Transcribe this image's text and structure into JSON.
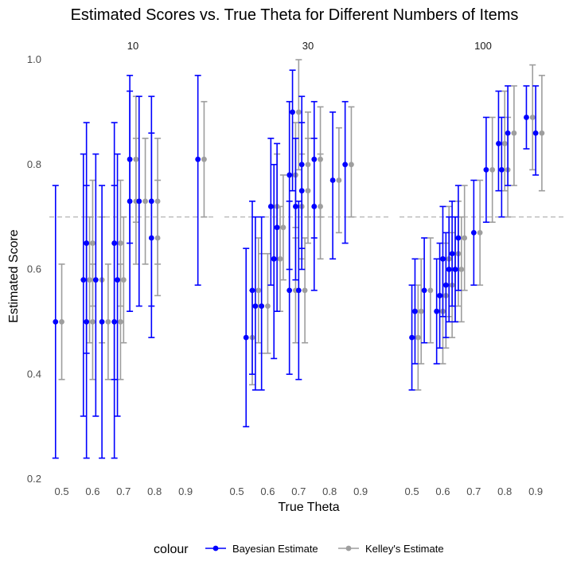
{
  "chart_data": {
    "type": "scatter",
    "title": "Estimated Scores vs. True Theta for Different Numbers of Items",
    "xlabel": "True Theta",
    "ylabel": "Estimated Score",
    "facets": [
      "10",
      "30",
      "100"
    ],
    "x_ticks": [
      "0.5",
      "0.6",
      "0.7",
      "0.8",
      "0.9"
    ],
    "y_ticks": [
      "0.2",
      "0.4",
      "0.6",
      "0.8",
      "1.0"
    ],
    "xlim": [
      0.46,
      1.0
    ],
    "ylim": [
      0.2,
      1.0
    ],
    "reference_line": {
      "y": 0.7,
      "style": "dashed"
    },
    "grid": false,
    "legend": {
      "position": "bottom",
      "title": "colour"
    },
    "series": [
      {
        "name": "Bayesian Estimate",
        "color": "#0000ff",
        "offset": 0
      },
      {
        "name": "Kelley's Estimate",
        "color": "#9e9e9e",
        "offset": 0.02
      }
    ],
    "panels": [
      {
        "facet": "10",
        "points": [
          {
            "x": 0.48,
            "b": [
              0.5,
              0.24,
              0.76
            ],
            "k": [
              0.5,
              0.39,
              0.61
            ]
          },
          {
            "x": 0.57,
            "b": [
              0.58,
              0.32,
              0.82
            ],
            "k": [
              0.58,
              0.46,
              0.7
            ]
          },
          {
            "x": 0.58,
            "b": [
              0.5,
              0.24,
              0.76
            ],
            "k": [
              0.5,
              0.39,
              0.61
            ]
          },
          {
            "x": 0.58,
            "b": [
              0.65,
              0.44,
              0.88
            ],
            "k": [
              0.65,
              0.53,
              0.77
            ]
          },
          {
            "x": 0.61,
            "b": [
              0.58,
              0.32,
              0.82
            ],
            "k": [
              0.58,
              0.46,
              0.7
            ]
          },
          {
            "x": 0.63,
            "b": [
              0.5,
              0.24,
              0.76
            ],
            "k": [
              0.5,
              0.39,
              0.61
            ]
          },
          {
            "x": 0.67,
            "b": [
              0.65,
              0.39,
              0.88
            ],
            "k": [
              0.65,
              0.53,
              0.77
            ]
          },
          {
            "x": 0.67,
            "b": [
              0.5,
              0.24,
              0.76
            ],
            "k": [
              0.5,
              0.39,
              0.61
            ]
          },
          {
            "x": 0.68,
            "b": [
              0.58,
              0.32,
              0.82
            ],
            "k": [
              0.58,
              0.46,
              0.7
            ]
          },
          {
            "x": 0.72,
            "b": [
              0.81,
              0.65,
              0.97
            ],
            "k": [
              0.81,
              0.69,
              0.93
            ]
          },
          {
            "x": 0.72,
            "b": [
              0.73,
              0.52,
              0.94
            ],
            "k": [
              0.73,
              0.61,
              0.85
            ]
          },
          {
            "x": 0.75,
            "b": [
              0.73,
              0.53,
              0.93
            ],
            "k": [
              0.73,
              0.61,
              0.85
            ]
          },
          {
            "x": 0.79,
            "b": [
              0.66,
              0.47,
              0.86
            ],
            "k": [
              0.66,
              0.55,
              0.77
            ]
          },
          {
            "x": 0.79,
            "b": [
              0.73,
              0.53,
              0.93
            ],
            "k": [
              0.73,
              0.61,
              0.85
            ]
          },
          {
            "x": 0.94,
            "b": [
              0.81,
              0.57,
              0.97
            ],
            "k": [
              0.81,
              0.7,
              0.92
            ]
          }
        ]
      },
      {
        "facet": "30",
        "points": [
          {
            "x": 0.53,
            "b": [
              0.47,
              0.3,
              0.64
            ],
            "k": [
              0.47,
              0.38,
              0.56
            ]
          },
          {
            "x": 0.55,
            "b": [
              0.56,
              0.4,
              0.73
            ],
            "k": [
              0.56,
              0.46,
              0.66
            ]
          },
          {
            "x": 0.56,
            "b": [
              0.53,
              0.37,
              0.7
            ],
            "k": [
              0.53,
              0.44,
              0.63
            ]
          },
          {
            "x": 0.58,
            "b": [
              0.53,
              0.37,
              0.7
            ],
            "k": [
              0.53,
              0.44,
              0.63
            ]
          },
          {
            "x": 0.61,
            "b": [
              0.72,
              0.57,
              0.85
            ],
            "k": [
              0.72,
              0.62,
              0.82
            ]
          },
          {
            "x": 0.62,
            "b": [
              0.62,
              0.43,
              0.8
            ],
            "k": [
              0.62,
              0.52,
              0.72
            ]
          },
          {
            "x": 0.63,
            "b": [
              0.68,
              0.52,
              0.84
            ],
            "k": [
              0.68,
              0.58,
              0.78
            ]
          },
          {
            "x": 0.67,
            "b": [
              0.78,
              0.6,
              0.92
            ],
            "k": [
              0.78,
              0.68,
              0.88
            ]
          },
          {
            "x": 0.67,
            "b": [
              0.56,
              0.4,
              0.73
            ],
            "k": [
              0.56,
              0.46,
              0.66
            ]
          },
          {
            "x": 0.68,
            "b": [
              0.9,
              0.75,
              0.98
            ],
            "k": [
              0.9,
              0.79,
              1.0
            ]
          },
          {
            "x": 0.69,
            "b": [
              0.72,
              0.58,
              0.85
            ],
            "k": [
              0.72,
              0.62,
              0.82
            ]
          },
          {
            "x": 0.7,
            "b": [
              0.56,
              0.39,
              0.73
            ],
            "k": [
              0.56,
              0.46,
              0.66
            ]
          },
          {
            "x": 0.71,
            "b": [
              0.8,
              0.64,
              0.93
            ],
            "k": [
              0.8,
              0.7,
              0.9
            ]
          },
          {
            "x": 0.71,
            "b": [
              0.75,
              0.6,
              0.88
            ],
            "k": [
              0.75,
              0.65,
              0.85
            ]
          },
          {
            "x": 0.75,
            "b": [
              0.81,
              0.66,
              0.92
            ],
            "k": [
              0.81,
              0.7,
              0.91
            ]
          },
          {
            "x": 0.75,
            "b": [
              0.72,
              0.56,
              0.85
            ],
            "k": [
              0.72,
              0.62,
              0.82
            ]
          },
          {
            "x": 0.81,
            "b": [
              0.77,
              0.62,
              0.9
            ],
            "k": [
              0.77,
              0.67,
              0.87
            ]
          },
          {
            "x": 0.85,
            "b": [
              0.8,
              0.65,
              0.92
            ],
            "k": [
              0.8,
              0.7,
              0.91
            ]
          }
        ]
      },
      {
        "facet": "100",
        "points": [
          {
            "x": 0.5,
            "b": [
              0.47,
              0.37,
              0.57
            ],
            "k": [
              0.47,
              0.37,
              0.57
            ]
          },
          {
            "x": 0.51,
            "b": [
              0.52,
              0.42,
              0.62
            ],
            "k": [
              0.52,
              0.42,
              0.62
            ]
          },
          {
            "x": 0.54,
            "b": [
              0.56,
              0.46,
              0.66
            ],
            "k": [
              0.56,
              0.46,
              0.66
            ]
          },
          {
            "x": 0.58,
            "b": [
              0.52,
              0.42,
              0.62
            ],
            "k": [
              0.52,
              0.42,
              0.62
            ]
          },
          {
            "x": 0.59,
            "b": [
              0.55,
              0.45,
              0.65
            ],
            "k": [
              0.55,
              0.45,
              0.65
            ]
          },
          {
            "x": 0.6,
            "b": [
              0.62,
              0.51,
              0.72
            ],
            "k": [
              0.62,
              0.51,
              0.72
            ]
          },
          {
            "x": 0.61,
            "b": [
              0.57,
              0.47,
              0.67
            ],
            "k": [
              0.57,
              0.47,
              0.67
            ]
          },
          {
            "x": 0.62,
            "b": [
              0.6,
              0.5,
              0.7
            ],
            "k": [
              0.6,
              0.5,
              0.7
            ]
          },
          {
            "x": 0.63,
            "b": [
              0.63,
              0.53,
              0.73
            ],
            "k": [
              0.63,
              0.53,
              0.73
            ]
          },
          {
            "x": 0.64,
            "b": [
              0.6,
              0.5,
              0.7
            ],
            "k": [
              0.6,
              0.5,
              0.7
            ]
          },
          {
            "x": 0.65,
            "b": [
              0.66,
              0.56,
              0.76
            ],
            "k": [
              0.66,
              0.56,
              0.76
            ]
          },
          {
            "x": 0.7,
            "b": [
              0.67,
              0.57,
              0.77
            ],
            "k": [
              0.67,
              0.57,
              0.77
            ]
          },
          {
            "x": 0.74,
            "b": [
              0.79,
              0.69,
              0.89
            ],
            "k": [
              0.79,
              0.69,
              0.89
            ]
          },
          {
            "x": 0.78,
            "b": [
              0.84,
              0.75,
              0.94
            ],
            "k": [
              0.84,
              0.75,
              0.94
            ]
          },
          {
            "x": 0.79,
            "b": [
              0.79,
              0.7,
              0.89
            ],
            "k": [
              0.79,
              0.7,
              0.89
            ]
          },
          {
            "x": 0.81,
            "b": [
              0.86,
              0.76,
              0.95
            ],
            "k": [
              0.86,
              0.76,
              0.95
            ]
          },
          {
            "x": 0.87,
            "b": [
              0.89,
              0.83,
              0.95
            ],
            "k": [
              0.89,
              0.79,
              0.99
            ]
          },
          {
            "x": 0.9,
            "b": [
              0.86,
              0.78,
              0.95
            ],
            "k": [
              0.86,
              0.75,
              0.97
            ]
          }
        ]
      }
    ]
  }
}
